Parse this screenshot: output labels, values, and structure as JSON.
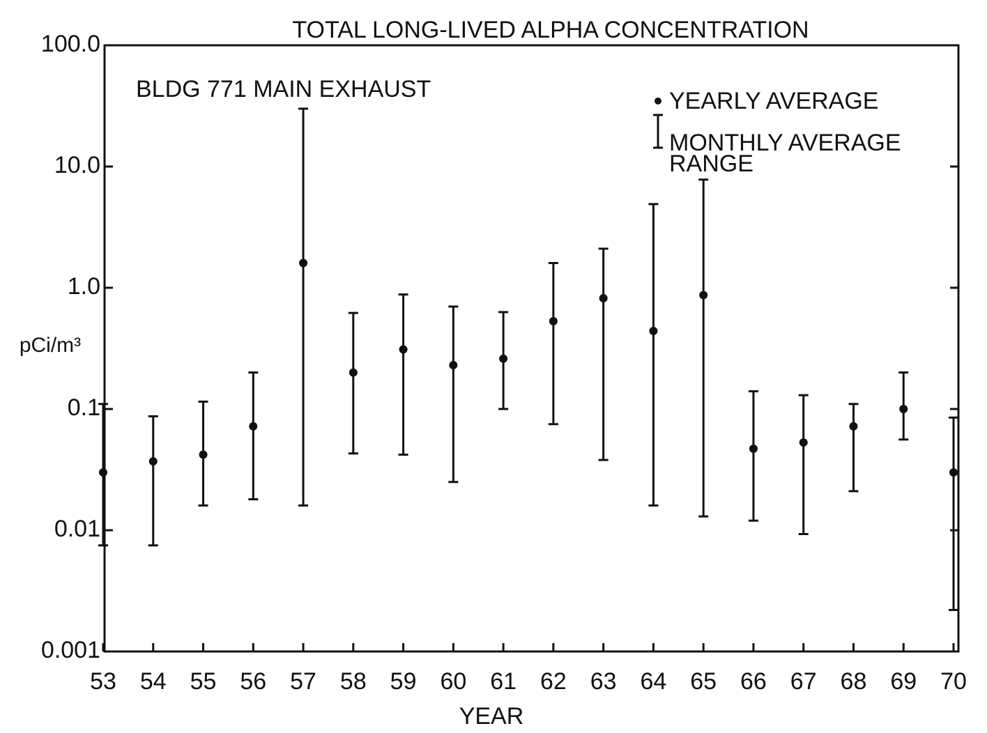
{
  "chart_data": {
    "type": "errorbar",
    "title": "TOTAL LONG-LIVED ALPHA CONCENTRATION",
    "annotation": "BLDG 771 MAIN EXHAUST",
    "x_label": "YEAR",
    "y_label": "pCi/m³",
    "log_y": true,
    "categories": [
      "53",
      "54",
      "55",
      "56",
      "57",
      "58",
      "59",
      "60",
      "61",
      "62",
      "63",
      "64",
      "65",
      "66",
      "67",
      "68",
      "69",
      "70"
    ],
    "series": [
      {
        "name": "YEARLY AVERAGE",
        "color": "#111111",
        "values": [
          0.03,
          0.037,
          0.042,
          0.072,
          1.6,
          0.2,
          0.31,
          0.23,
          0.26,
          0.53,
          0.82,
          0.44,
          0.87,
          0.047,
          0.053,
          0.072,
          0.1,
          0.03
        ]
      }
    ],
    "range": {
      "name": "MONTHLY AVERAGE RANGE",
      "color": "#111111",
      "low": [
        0.0075,
        0.0075,
        0.016,
        0.018,
        0.016,
        0.043,
        0.042,
        0.025,
        0.1,
        0.075,
        0.038,
        0.016,
        0.013,
        0.012,
        0.0093,
        0.021,
        0.056,
        0.0022
      ],
      "high": [
        0.11,
        0.087,
        0.115,
        0.2,
        30,
        0.62,
        0.88,
        0.7,
        0.63,
        1.6,
        2.1,
        4.9,
        7.8,
        0.14,
        0.13,
        0.11,
        0.2,
        0.085
      ]
    },
    "ylim": [
      0.001,
      100
    ],
    "yticks": [
      {
        "value": 100,
        "label": "100.0"
      },
      {
        "value": 10,
        "label": "10.0"
      },
      {
        "value": 1,
        "label": "1.0"
      },
      0.1,
      0.01,
      0.001
    ],
    "legend": "upper right"
  }
}
